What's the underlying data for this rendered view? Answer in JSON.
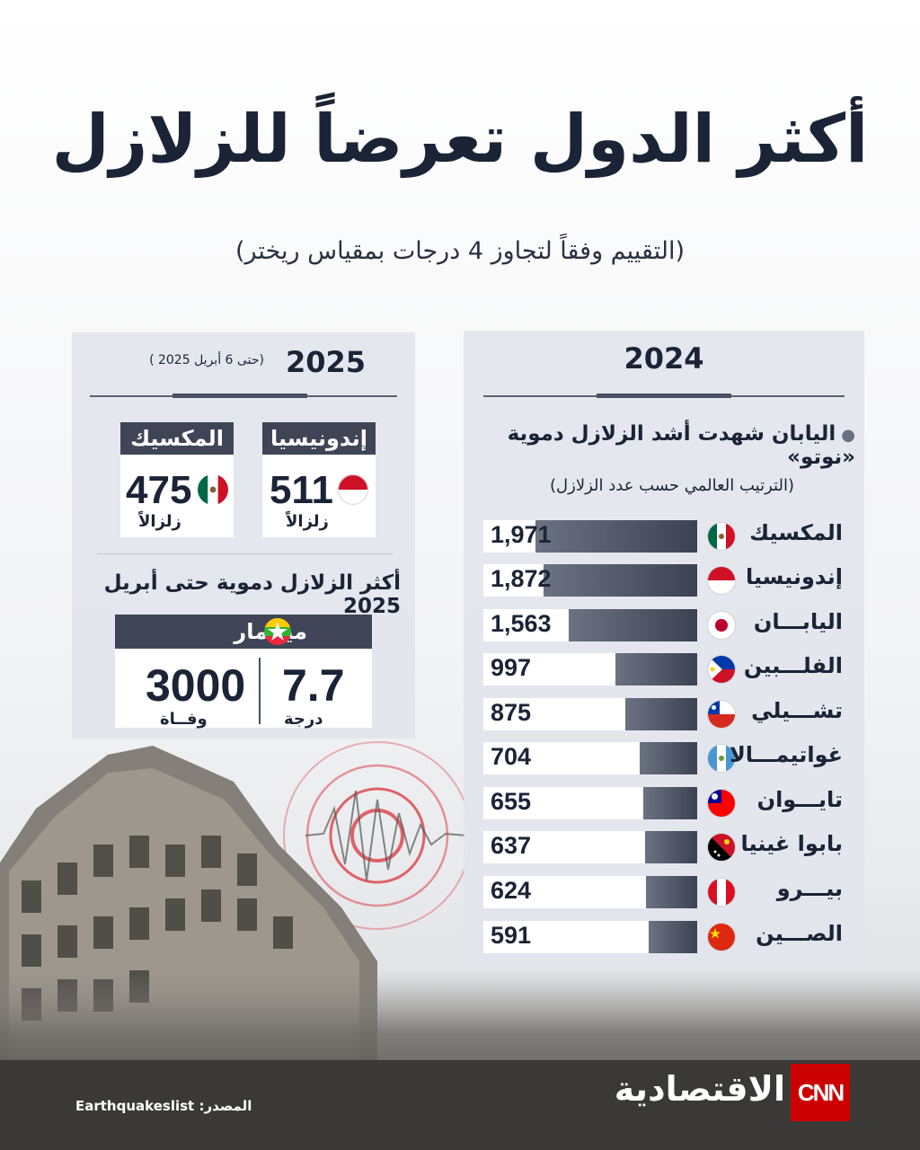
{
  "header": {
    "title": "أكثر الدول تعرضاً للزلازل",
    "subtitle": "(التقييم وفقاً لتجاوز 4 درجات بمقياس ريختر)"
  },
  "panel_2024": {
    "year": "2024",
    "bullet": "اليابان شهدت أشد الزلازل دموية «نوتو»",
    "rank_note": "(الترتيب العالمي حسب عدد الزلازل)"
  },
  "panel_2025": {
    "year": "2025",
    "note": "(حتى 6 أبريل 2025 )",
    "cards": [
      {
        "country": "إندونيسيا",
        "value": "511",
        "unit": "زلزالاً"
      },
      {
        "country": "المكسيك",
        "value": "475",
        "unit": "زلزالاً"
      }
    ],
    "deadly_title": "أكثر الزلازل دموية حتى أبريل 2025",
    "deadly": {
      "country": "ميانمار",
      "magnitude": "7.7",
      "magnitude_unit": "درجة",
      "deaths": "3000",
      "deaths_unit": "وفــاة"
    }
  },
  "chart_data": {
    "type": "bar",
    "title": "",
    "categories": [
      "المكسيك",
      "إندونيسيا",
      "اليابـــان",
      "الفلـــبين",
      "تشـــيلي",
      "غواتيمـــالا",
      "تايـــوان",
      "بابوا غينيا",
      "بيـــرو",
      "الصـــين"
    ],
    "values": [
      1971,
      1872,
      1563,
      997,
      875,
      704,
      655,
      637,
      624,
      591
    ],
    "value_labels": [
      "1,971",
      "1,872",
      "1,563",
      "997",
      "875",
      "704",
      "655",
      "637",
      "624",
      "591"
    ],
    "xlabel": "",
    "ylabel": "",
    "xlim": [
      0,
      2600
    ]
  },
  "footer": {
    "source": "المصدر: Earthquakeslist",
    "brand": "الاقتصادية",
    "logo": "CNN"
  }
}
